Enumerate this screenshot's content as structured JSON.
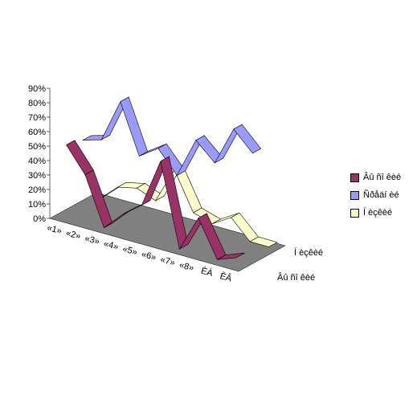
{
  "chart_data": {
    "type": "line",
    "title": "",
    "xlabel": "",
    "ylabel": "",
    "ylim": [
      0,
      0.9
    ],
    "yticks": [
      "0%",
      "10%",
      "20%",
      "30%",
      "40%",
      "50%",
      "60%",
      "70%",
      "80%",
      "90%"
    ],
    "categories": [
      "«1»",
      "«2»",
      "«3»",
      "«4»",
      "«5»",
      "«6»",
      "«7»",
      "«8»",
      "ÈÀ",
      "ÈÂ"
    ],
    "depth_labels": [
      "Âû ñî êèé",
      "Í èçêèé"
    ],
    "legend_position": "right",
    "series": [
      {
        "name": "Âû ñî êèé",
        "color": "#993366",
        "values": [
          0.5,
          0.33,
          0.0,
          0.13,
          0.23,
          0.57,
          0.0,
          0.25,
          0.0,
          0.05
        ]
      },
      {
        "name": "Ñðåäí èé",
        "color": "#9999FF",
        "values": [
          0.47,
          0.51,
          0.81,
          0.47,
          0.56,
          0.41,
          0.69,
          0.57,
          0.84,
          0.71
        ]
      },
      {
        "name": "Í èçêèé",
        "color": "#FFFFCC",
        "values": [
          0.0,
          0.12,
          0.15,
          0.1,
          0.35,
          0.09,
          0.05,
          0.13,
          0.0,
          0.0
        ]
      }
    ]
  }
}
